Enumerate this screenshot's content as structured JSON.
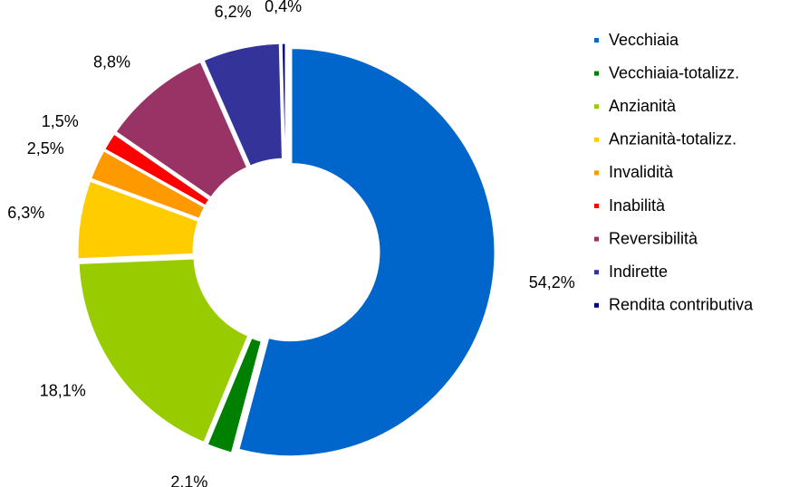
{
  "chart_data": {
    "type": "pie",
    "donut": true,
    "categories": [
      "Vecchiaia",
      "Vecchiaia-totalizz.",
      "Anzianità",
      "Anzianità-totalizz.",
      "Invalidità",
      "Inabilità",
      "Reversibilità",
      "Indirette",
      "Rendita contributiva"
    ],
    "values": [
      54.2,
      2.1,
      18.1,
      6.3,
      2.5,
      1.5,
      8.8,
      6.2,
      0.4
    ],
    "value_labels": [
      "54,2%",
      "2,1%",
      "18,1%",
      "6,3%",
      "2,5%",
      "1,5%",
      "8,8%",
      "6,2%",
      "0,4%"
    ],
    "colors": [
      "#0066cc",
      "#008000",
      "#99cc00",
      "#ffcc00",
      "#ff9900",
      "#ff0000",
      "#993366",
      "#333399",
      "#000080"
    ],
    "legend": "right"
  }
}
